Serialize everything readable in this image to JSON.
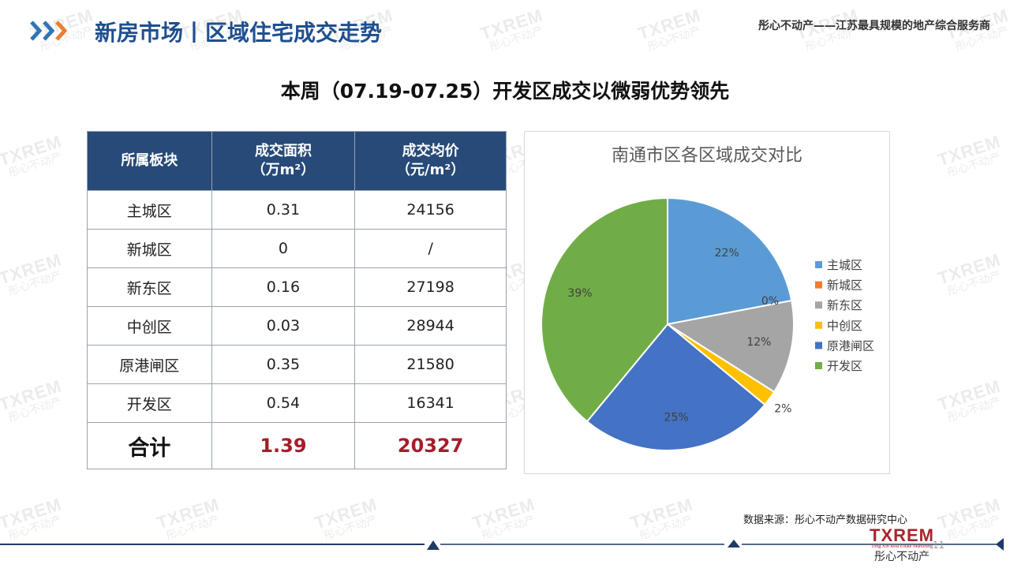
{
  "header": {
    "title": "新房市场丨区域住宅成交走势",
    "tagline": "彤心不动产——江苏最具规模的地产综合服务商"
  },
  "subtitle": "本周（07.19-07.25）开发区成交以微弱优势领先",
  "table": {
    "headers": [
      {
        "line1": "所属板块",
        "line2": ""
      },
      {
        "line1": "成交面积",
        "line2": "（万m²）"
      },
      {
        "line1": "成交均价",
        "line2": "（元/m²）"
      }
    ],
    "rows": [
      [
        "主城区",
        "0.31",
        "24156"
      ],
      [
        "新城区",
        "0",
        "/"
      ],
      [
        "新东区",
        "0.16",
        "27198"
      ],
      [
        "中创区",
        "0.03",
        "28944"
      ],
      [
        "原港闸区",
        "0.35",
        "21580"
      ],
      [
        "开发区",
        "0.54",
        "16341"
      ]
    ],
    "total": [
      "合计",
      "1.39",
      "20327"
    ]
  },
  "chart_data": {
    "type": "pie",
    "title": "南通市区各区域成交对比",
    "categories": [
      "主城区",
      "新城区",
      "新东区",
      "中创区",
      "原港闸区",
      "开发区"
    ],
    "values": [
      22,
      0,
      12,
      2,
      25,
      39
    ],
    "labels": [
      "22%",
      "0%",
      "12%",
      "2%",
      "25%",
      "39%"
    ],
    "colors": [
      "#5b9bd5",
      "#ed7d31",
      "#a5a5a5",
      "#ffc000",
      "#4472c4",
      "#70ad47"
    ],
    "legend_position": "right"
  },
  "source": "数据来源：彤心不动产数据研究中心",
  "logo": {
    "brand": "TXREM",
    "small": "Tong Xin Real Estate Marketing",
    "cn": "彤心不动产"
  },
  "page_number": "11",
  "watermark": {
    "brand": "TXREM",
    "cn": "彤心不动产"
  },
  "colors": {
    "title_blue": "#1f4f8f",
    "table_header": "#274a78",
    "total_red": "#a51d2a",
    "chevron_blue": "#2e75b6",
    "chevron_orange": "#ed7d31"
  }
}
